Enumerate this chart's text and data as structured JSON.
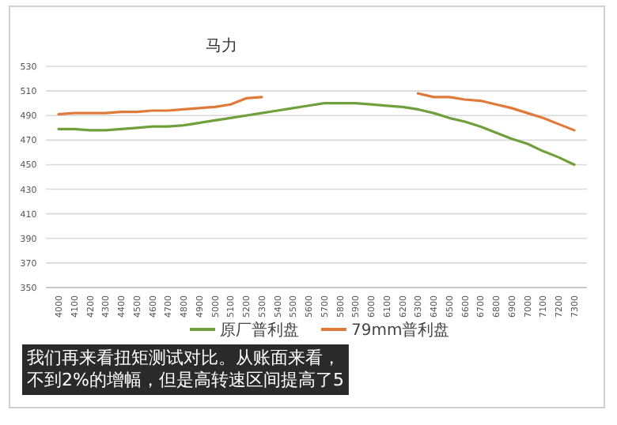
{
  "chart_data": {
    "type": "line",
    "title": "马力",
    "categories": [
      "4000",
      "4100",
      "4200",
      "4300",
      "4400",
      "4500",
      "4600",
      "4700",
      "4800",
      "4900",
      "5000",
      "5100",
      "5200",
      "5300",
      "5400",
      "5500",
      "5600",
      "5700",
      "5800",
      "5900",
      "6000",
      "6100",
      "6200",
      "6300",
      "6400",
      "6500",
      "6600",
      "6700",
      "6800",
      "6900",
      "7000",
      "7100",
      "7200",
      "7300"
    ],
    "series": [
      {
        "name": "原厂普利盘",
        "color": "#70a03c",
        "values": [
          479,
          479,
          478,
          478,
          479,
          480,
          481,
          481,
          482,
          484,
          486,
          488,
          490,
          492,
          494,
          496,
          498,
          500,
          500,
          500,
          499,
          498,
          497,
          495,
          492,
          488,
          485,
          481,
          476,
          471,
          467,
          461,
          456,
          450
        ]
      },
      {
        "name": "79mm普利盘",
        "color": "#e07a3a",
        "values": [
          491,
          492,
          492,
          492,
          493,
          493,
          494,
          494,
          495,
          496,
          497,
          499,
          504,
          505,
          null,
          null,
          null,
          null,
          null,
          null,
          null,
          null,
          null,
          508,
          505,
          505,
          503,
          502,
          499,
          496,
          492,
          488,
          483,
          478
        ]
      }
    ],
    "ylim": [
      350,
      530
    ],
    "yticks": [
      350,
      370,
      390,
      410,
      430,
      450,
      470,
      490,
      510,
      530
    ],
    "grid": "y",
    "legend": "bottom",
    "marker": "none",
    "line_style": "solid",
    "annotations": [
      "我们再来看扭矩测试对比。从账面来看，",
      "不到2%的增幅，但是高转速区间提高了5"
    ]
  }
}
